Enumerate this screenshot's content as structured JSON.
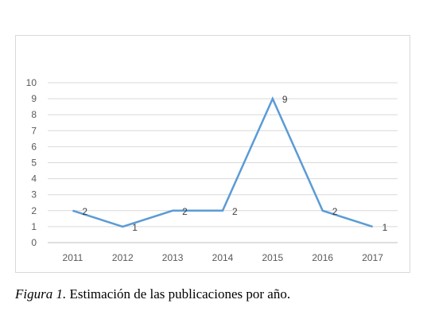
{
  "chart_data": {
    "type": "line",
    "categories": [
      "2011",
      "2012",
      "2013",
      "2014",
      "2015",
      "2016",
      "2017"
    ],
    "series": [
      {
        "values": [
          2,
          1,
          2,
          2,
          9,
          2,
          1
        ]
      }
    ],
    "ylim": [
      0,
      10
    ],
    "yticks": [
      0,
      1,
      2,
      3,
      4,
      5,
      6,
      7,
      8,
      9,
      10
    ],
    "grid": true,
    "data_labels": true,
    "colors": {
      "line": "#5b9bd5",
      "grid": "#d9d9d9",
      "axis": "#bfbfbf"
    }
  },
  "caption": {
    "label": "Figura 1.",
    "text": " Estimación de las publicaciones por año."
  }
}
